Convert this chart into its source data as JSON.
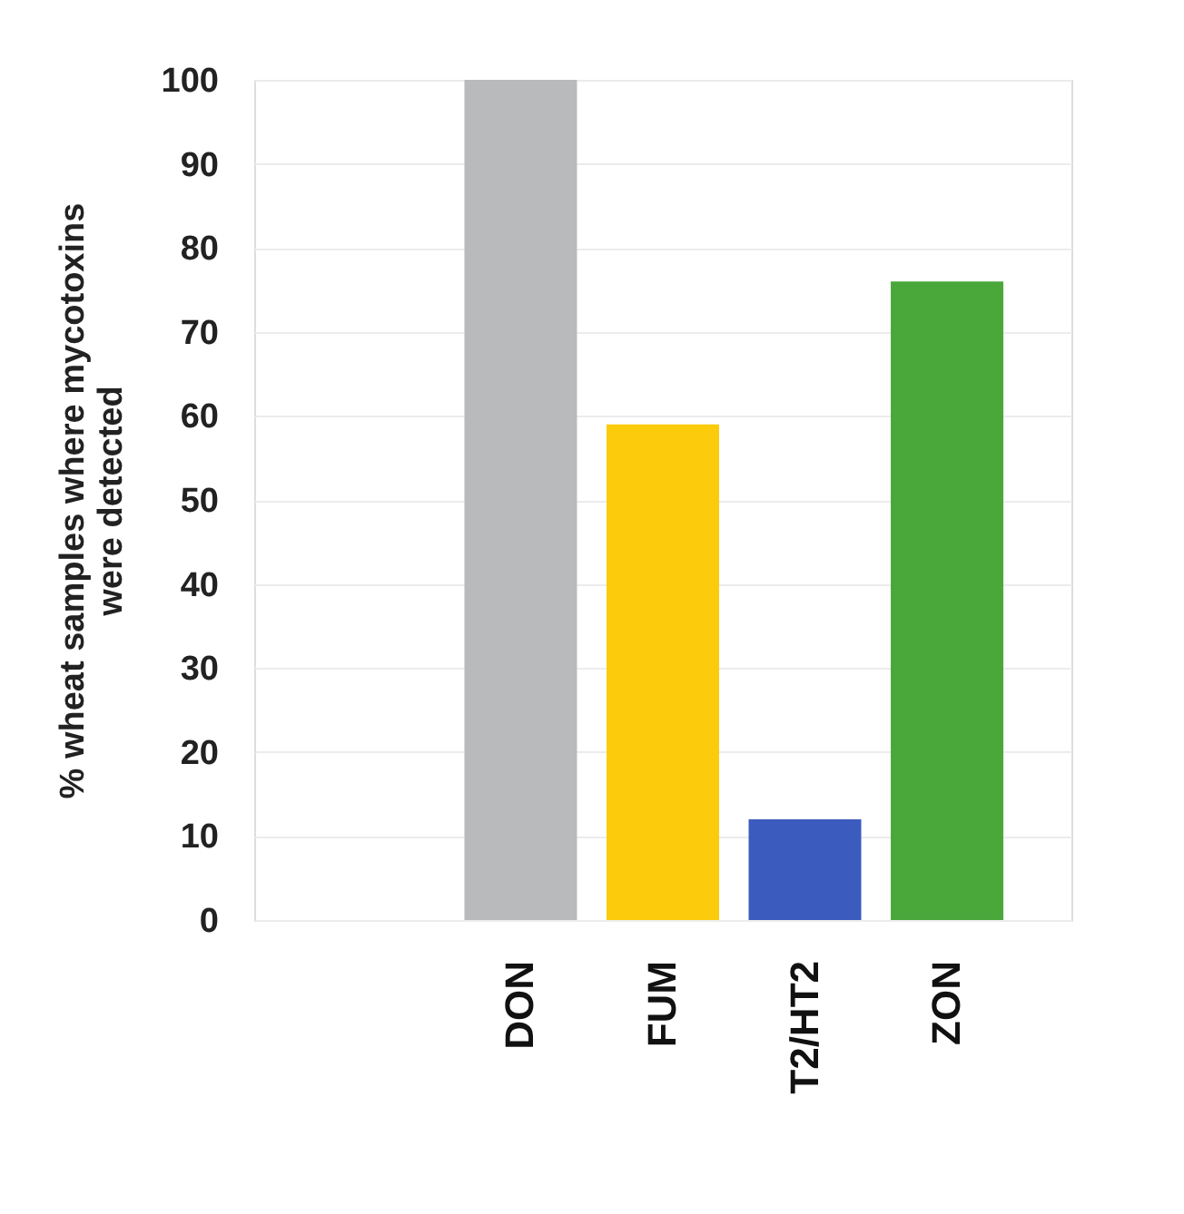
{
  "chart_data": {
    "type": "bar",
    "ylabel": "% wheat samples where mycotoxins were detected",
    "categories": [
      "DON",
      "FUM",
      "T2/HT2",
      "ZON"
    ],
    "values": [
      100,
      59,
      12,
      76
    ],
    "colors": [
      "#b9babc",
      "#fccb0b",
      "#3c5bbf",
      "#4aa83b"
    ],
    "ylim": [
      0,
      100
    ],
    "yticks": [
      0,
      10,
      20,
      30,
      40,
      50,
      60,
      70,
      80,
      90,
      100
    ],
    "grid": "y",
    "legend": false
  }
}
